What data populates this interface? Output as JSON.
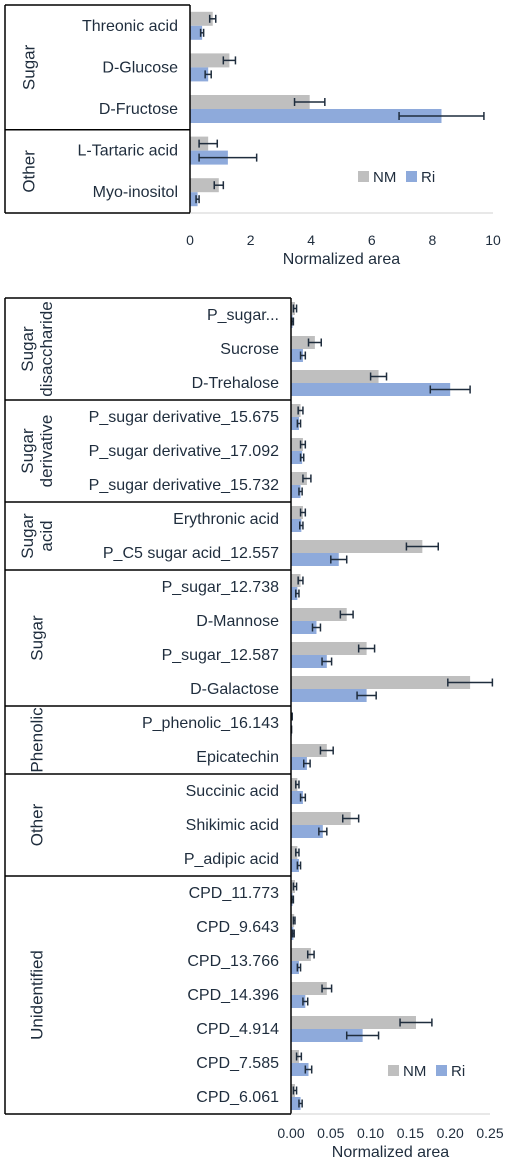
{
  "colors": {
    "NM": "#bfbfbf",
    "Ri": "#8eaadb",
    "err": "#1f2d3d"
  },
  "chart_data": [
    {
      "type": "bar",
      "orientation": "horizontal",
      "xlabel": "Normalized area",
      "xlim": [
        0,
        10
      ],
      "ticks": [
        "0",
        "2",
        "4",
        "6",
        "8",
        "10"
      ],
      "tick_values": [
        0,
        2,
        4,
        6,
        8,
        10
      ],
      "legend": {
        "position": "bottom-right",
        "entries": [
          "NM",
          "Ri"
        ]
      },
      "categories": [
        "Threonic acid",
        "D-Glucose",
        "D-Fructose",
        "L-Tartaric acid",
        "Myo-inositol"
      ],
      "groups": [
        {
          "name": "Sugar",
          "count": 3
        },
        {
          "name": "Other",
          "count": 2
        }
      ],
      "series": [
        {
          "name": "NM",
          "values": [
            0.75,
            1.3,
            3.95,
            0.6,
            0.95
          ],
          "errors": [
            0.1,
            0.2,
            0.5,
            0.3,
            0.15
          ]
        },
        {
          "name": "Ri",
          "values": [
            0.4,
            0.6,
            8.3,
            1.25,
            0.25
          ],
          "errors": [
            0.05,
            0.1,
            1.4,
            0.95,
            0.05
          ]
        }
      ]
    },
    {
      "type": "bar",
      "orientation": "horizontal",
      "xlabel": "Normalized area",
      "xlim": [
        0,
        0.25
      ],
      "ticks": [
        "0.00",
        "0.05",
        "0.10",
        "0.15",
        "0.20",
        "0.25"
      ],
      "tick_values": [
        0,
        0.05,
        0.1,
        0.15,
        0.2,
        0.25
      ],
      "legend": {
        "position": "bottom-right",
        "entries": [
          "NM",
          "Ri"
        ]
      },
      "categories": [
        "P_sugar...",
        "Sucrose",
        "D-Trehalose",
        "P_sugar derivative_15.675",
        "P_sugar derivative_17.092",
        "P_sugar derivative_15.732",
        "Erythronic acid",
        "P_C5 sugar acid_12.557",
        "P_sugar_12.738",
        "D-Mannose",
        "P_sugar_12.587",
        "D-Galactose",
        "P_phenolic_16.143",
        "Epicatechin",
        "Succinic acid",
        "Shikimic acid",
        "P_adipic acid",
        "CPD_11.773",
        "CPD_9.643",
        "CPD_13.766",
        "CPD_14.396",
        "CPD_4.914",
        "CPD_7.585",
        "CPD_6.061"
      ],
      "groups": [
        {
          "name": "Sugar disaccharide",
          "lines": [
            "Sugar",
            "disaccharide"
          ],
          "count": 3
        },
        {
          "name": "Sugar derivative",
          "lines": [
            "Sugar",
            "derivative"
          ],
          "count": 3
        },
        {
          "name": "Sugar acid",
          "lines": [
            "Sugar",
            "acid"
          ],
          "count": 2
        },
        {
          "name": "Sugar",
          "lines": [
            "Sugar"
          ],
          "count": 4
        },
        {
          "name": "Phenolic",
          "lines": [
            "Phenolic"
          ],
          "count": 2
        },
        {
          "name": "Other",
          "lines": [
            "Other"
          ],
          "count": 3
        },
        {
          "name": "Unidentified",
          "lines": [
            "Unidentified"
          ],
          "count": 7
        }
      ],
      "series": [
        {
          "name": "NM",
          "values": [
            0.005,
            0.03,
            0.11,
            0.012,
            0.015,
            0.02,
            0.015,
            0.165,
            0.012,
            0.07,
            0.095,
            0.225,
            0.001,
            0.045,
            0.008,
            0.075,
            0.008,
            0.005,
            0.004,
            0.025,
            0.045,
            0.157,
            0.01,
            0.005
          ],
          "errors": [
            0.002,
            0.008,
            0.01,
            0.003,
            0.003,
            0.005,
            0.003,
            0.02,
            0.003,
            0.008,
            0.01,
            0.028,
            0.0005,
            0.008,
            0.002,
            0.01,
            0.002,
            0.002,
            0.001,
            0.004,
            0.006,
            0.02,
            0.003,
            0.002
          ]
        },
        {
          "name": "Ri",
          "values": [
            0.002,
            0.015,
            0.2,
            0.01,
            0.014,
            0.012,
            0.013,
            0.06,
            0.008,
            0.032,
            0.045,
            0.095,
            0.0005,
            0.02,
            0.015,
            0.04,
            0.01,
            0.002,
            0.003,
            0.01,
            0.018,
            0.09,
            0.022,
            0.012
          ],
          "errors": [
            0.001,
            0.003,
            0.025,
            0.002,
            0.002,
            0.002,
            0.002,
            0.01,
            0.002,
            0.005,
            0.006,
            0.012,
            0.0002,
            0.004,
            0.003,
            0.005,
            0.002,
            0.001,
            0.001,
            0.002,
            0.003,
            0.02,
            0.004,
            0.002
          ]
        }
      ]
    }
  ]
}
